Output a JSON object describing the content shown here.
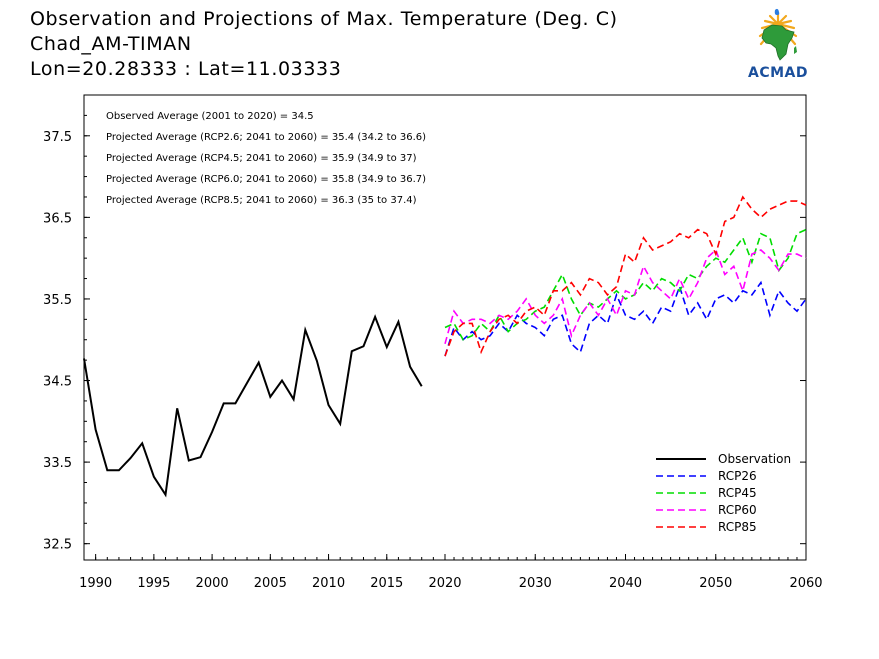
{
  "header": {
    "line1": "Observation and Projections of Max. Temperature (Deg. C)",
    "line2": "Chad_AM-TIMAN",
    "line3": "Lon=20.28333 : Lat=11.03333"
  },
  "logo": {
    "text": "ACMAD",
    "icon": "africa-logo-icon"
  },
  "colors": {
    "observation": "#000000",
    "rcp26": "#0000ff",
    "rcp45": "#00dd00",
    "rcp60": "#ff00ff",
    "rcp85": "#ff0000"
  },
  "chart_data": {
    "type": "line",
    "xlim": [
      1989,
      2060
    ],
    "ylim": [
      32.3,
      38.0
    ],
    "yticks": [
      32.5,
      33.5,
      34.5,
      35.5,
      36.5,
      37.5
    ],
    "xticks": [
      1990,
      1995,
      2000,
      2005,
      2010,
      2015,
      2020,
      2030,
      2040,
      2050,
      2060
    ],
    "grid": false,
    "legend_position": "bottom-right",
    "annotations": [
      "Observed Average (2001 to 2020) = 34.5",
      "Projected Average (RCP2.6; 2041 to 2060) = 35.4 (34.2 to 36.6)",
      "Projected Average (RCP4.5; 2041 to 2060) = 35.9 (34.9 to 37)",
      "Projected Average (RCP6.0; 2041 to 2060) = 35.8 (34.9 to 36.7)",
      "Projected Average (RCP8.5; 2041 to 2060) = 36.3 (35 to 37.4)"
    ],
    "series": [
      {
        "name": "Observation",
        "key": "observation",
        "style": "solid",
        "x": [
          1989,
          1990,
          1991,
          1992,
          1993,
          1994,
          1995,
          1996,
          1997,
          1998,
          1999,
          2000,
          2001,
          2002,
          2003,
          2004,
          2005,
          2006,
          2007,
          2008,
          2009,
          2010,
          2011,
          2012,
          2013,
          2014,
          2015,
          2016,
          2017,
          2018,
          2019
        ],
        "y": [
          34.77,
          33.9,
          33.4,
          33.4,
          33.55,
          33.73,
          33.32,
          33.1,
          34.16,
          33.52,
          33.56,
          33.87,
          34.22,
          34.22,
          34.47,
          34.72,
          34.3,
          34.5,
          34.27,
          35.12,
          34.74,
          34.2,
          33.97,
          34.86,
          34.92,
          35.28,
          34.91,
          35.22,
          34.67,
          34.43,
          null
        ]
      },
      {
        "name": "RCP26",
        "key": "rcp26",
        "style": "dashed",
        "x": [
          2020,
          2021,
          2022,
          2023,
          2024,
          2025,
          2026,
          2027,
          2028,
          2029,
          2030,
          2031,
          2032,
          2033,
          2034,
          2035,
          2036,
          2037,
          2038,
          2039,
          2040,
          2041,
          2042,
          2043,
          2044,
          2045,
          2046,
          2047,
          2048,
          2049,
          2050,
          2051,
          2052,
          2053,
          2054,
          2055,
          2056,
          2057,
          2058,
          2059,
          2060
        ],
        "y": [
          34.8,
          35.15,
          35.0,
          35.1,
          35.0,
          35.05,
          35.2,
          35.1,
          35.3,
          35.2,
          35.15,
          35.05,
          35.25,
          35.3,
          34.95,
          34.85,
          35.2,
          35.3,
          35.2,
          35.55,
          35.3,
          35.25,
          35.35,
          35.2,
          35.4,
          35.35,
          35.65,
          35.3,
          35.45,
          35.25,
          35.5,
          35.55,
          35.45,
          35.6,
          35.55,
          35.7,
          35.3,
          35.6,
          35.45,
          35.35,
          35.5
        ]
      },
      {
        "name": "RCP45",
        "key": "rcp45",
        "style": "dashed",
        "x": [
          2020,
          2021,
          2022,
          2023,
          2024,
          2025,
          2026,
          2027,
          2028,
          2029,
          2030,
          2031,
          2032,
          2033,
          2034,
          2035,
          2036,
          2037,
          2038,
          2039,
          2040,
          2041,
          2042,
          2043,
          2044,
          2045,
          2046,
          2047,
          2048,
          2049,
          2050,
          2051,
          2052,
          2053,
          2054,
          2055,
          2056,
          2057,
          2058,
          2059,
          2060
        ],
        "y": [
          35.15,
          35.2,
          35.0,
          35.05,
          35.2,
          35.1,
          35.3,
          35.1,
          35.2,
          35.25,
          35.35,
          35.4,
          35.6,
          35.8,
          35.5,
          35.3,
          35.45,
          35.4,
          35.5,
          35.6,
          35.5,
          35.55,
          35.7,
          35.6,
          35.75,
          35.7,
          35.6,
          35.8,
          35.75,
          35.9,
          36.0,
          35.95,
          36.1,
          36.25,
          35.95,
          36.3,
          36.25,
          35.85,
          36.0,
          36.3,
          36.35
        ]
      },
      {
        "name": "RCP60",
        "key": "rcp60",
        "style": "dashed",
        "x": [
          2020,
          2021,
          2022,
          2023,
          2024,
          2025,
          2026,
          2027,
          2028,
          2029,
          2030,
          2031,
          2032,
          2033,
          2034,
          2035,
          2036,
          2037,
          2038,
          2039,
          2040,
          2041,
          2042,
          2043,
          2044,
          2045,
          2046,
          2047,
          2048,
          2049,
          2050,
          2051,
          2052,
          2053,
          2054,
          2055,
          2056,
          2057,
          2058,
          2059,
          2060
        ],
        "y": [
          34.95,
          35.35,
          35.2,
          35.25,
          35.25,
          35.2,
          35.3,
          35.25,
          35.35,
          35.5,
          35.3,
          35.2,
          35.3,
          35.5,
          35.05,
          35.3,
          35.45,
          35.3,
          35.5,
          35.3,
          35.6,
          35.55,
          35.9,
          35.7,
          35.6,
          35.5,
          35.75,
          35.5,
          35.7,
          36.0,
          36.1,
          35.8,
          35.9,
          35.6,
          36.05,
          36.1,
          36.0,
          35.85,
          36.05,
          36.05,
          36.0
        ]
      },
      {
        "name": "RCP85",
        "key": "rcp85",
        "style": "dashed",
        "x": [
          2020,
          2021,
          2022,
          2023,
          2024,
          2025,
          2026,
          2027,
          2028,
          2029,
          2030,
          2031,
          2032,
          2033,
          2034,
          2035,
          2036,
          2037,
          2038,
          2039,
          2040,
          2041,
          2042,
          2043,
          2044,
          2045,
          2046,
          2047,
          2048,
          2049,
          2050,
          2051,
          2052,
          2053,
          2054,
          2055,
          2056,
          2057,
          2058,
          2059,
          2060
        ],
        "y": [
          34.8,
          35.1,
          35.2,
          35.2,
          34.85,
          35.1,
          35.25,
          35.3,
          35.2,
          35.35,
          35.4,
          35.3,
          35.6,
          35.6,
          35.7,
          35.55,
          35.75,
          35.7,
          35.55,
          35.65,
          36.05,
          35.95,
          36.25,
          36.1,
          36.15,
          36.2,
          36.3,
          36.25,
          36.35,
          36.3,
          36.05,
          36.45,
          36.5,
          36.75,
          36.6,
          36.5,
          36.6,
          36.65,
          36.7,
          36.7,
          36.65
        ]
      }
    ]
  }
}
